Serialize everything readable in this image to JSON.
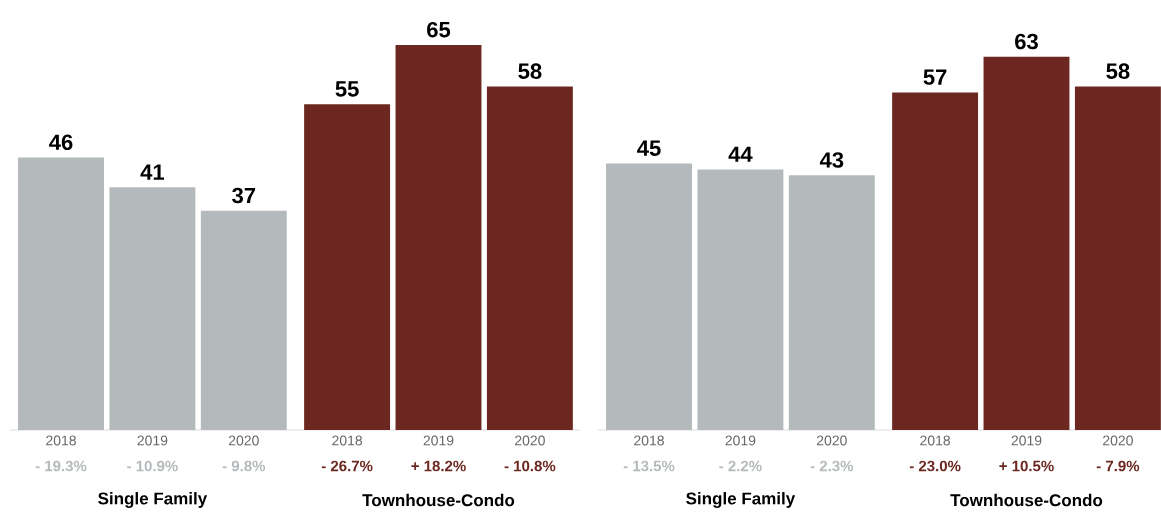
{
  "chart_data": [
    {
      "type": "bar",
      "categories": [
        "2018",
        "2019",
        "2020",
        "2018",
        "2019",
        "2020"
      ],
      "data_labels": true,
      "series": [
        {
          "color": "#b4babb",
          "values": [
            46,
            41,
            37,
            null,
            null,
            null
          ]
        },
        {
          "color": "#6b2720",
          "values": [
            null,
            null,
            null,
            55,
            65,
            58
          ]
        }
      ],
      "annotations": [
        "- 19.3%",
        "- 10.9%",
        "- 9.8%",
        "- 26.7%",
        "+ 18.2%",
        "- 10.8%",
        "Single Family",
        "Townhouse-Condo"
      ]
    },
    {
      "type": "bar",
      "categories": [
        "2018",
        "2019",
        "2020",
        "2018",
        "2019",
        "2020"
      ],
      "data_labels": true,
      "series": [
        {
          "color": "#b4babb",
          "values": [
            45,
            44,
            43,
            null,
            null,
            null
          ]
        },
        {
          "color": "#6b2720",
          "values": [
            null,
            null,
            null,
            57,
            63,
            58
          ]
        }
      ],
      "annotations": [
        "- 13.5%",
        "- 2.2%",
        "- 2.3%",
        "- 23.0%",
        "+ 10.5%",
        "- 7.9%",
        "Single Family",
        "Townhouse-Condo"
      ]
    }
  ]
}
